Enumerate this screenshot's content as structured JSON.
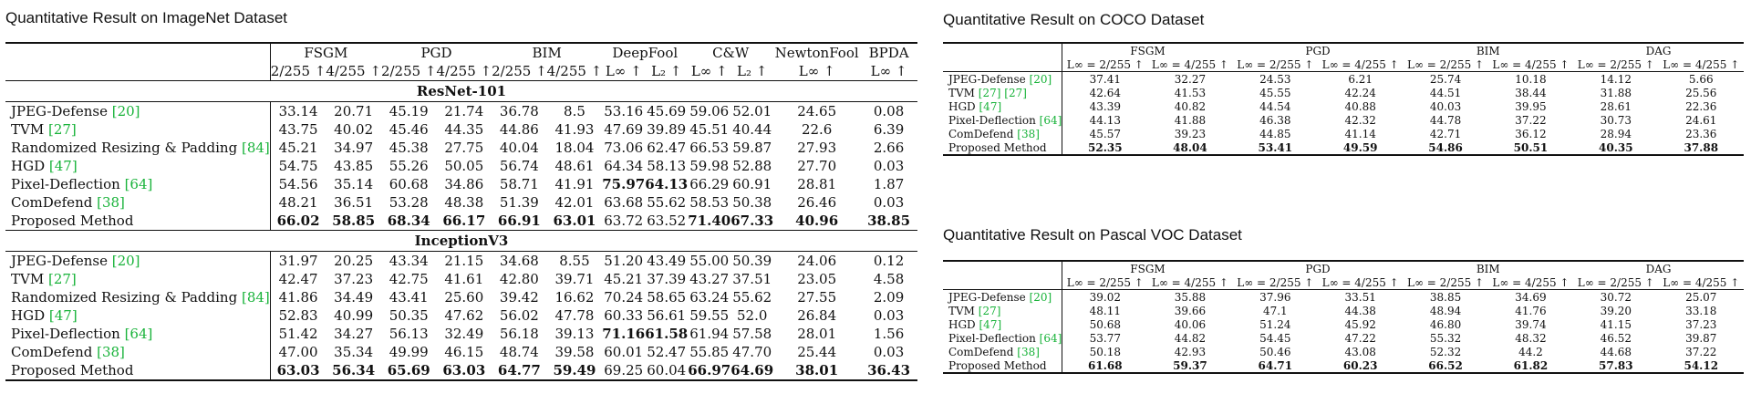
{
  "imagenet": {
    "caption": "Quantitative Result on ImageNet Dataset",
    "groups": [
      "FSGM",
      "PGD",
      "BIM",
      "DeepFool",
      "C&W",
      "NewtonFool",
      "BPDA"
    ],
    "subheaders": [
      "2/255 ↑",
      "4/255 ↑",
      "2/255 ↑",
      "4/255 ↑",
      "2/255 ↑",
      "4/255 ↑",
      "L∞ ↑",
      "L₂ ↑",
      "L∞ ↑",
      "L₂ ↑",
      "L∞ ↑",
      "L∞ ↑"
    ],
    "sections": [
      {
        "title": "ResNet-101",
        "rows": [
          {
            "method": "JPEG-Defense",
            "ref": "[20]",
            "values": [
              "33.14",
              "20.71",
              "45.19",
              "21.74",
              "36.78",
              "8.5",
              "53.16",
              "45.69",
              "59.06",
              "52.01",
              "24.65",
              "0.08"
            ],
            "bold": []
          },
          {
            "method": "TVM",
            "ref": "[27]",
            "values": [
              "43.75",
              "40.02",
              "45.46",
              "44.35",
              "44.86",
              "41.93",
              "47.69",
              "39.89",
              "45.51",
              "40.44",
              "22.6",
              "6.39"
            ],
            "bold": []
          },
          {
            "method": "Randomized Resizing & Padding",
            "ref": "[84]",
            "values": [
              "45.21",
              "34.97",
              "45.38",
              "27.75",
              "40.04",
              "18.04",
              "73.06",
              "62.47",
              "66.53",
              "59.87",
              "27.93",
              "2.66"
            ],
            "bold": []
          },
          {
            "method": "HGD",
            "ref": "[47]",
            "values": [
              "54.75",
              "43.85",
              "55.26",
              "50.05",
              "56.74",
              "48.61",
              "64.34",
              "58.13",
              "59.98",
              "52.88",
              "27.70",
              "0.03"
            ],
            "bold": []
          },
          {
            "method": "Pixel-Deflection",
            "ref": "[64]",
            "values": [
              "54.56",
              "35.14",
              "60.68",
              "34.86",
              "58.71",
              "41.91",
              "75.97",
              "64.13",
              "66.29",
              "60.91",
              "28.81",
              "1.87"
            ],
            "bold": [
              6,
              7
            ]
          },
          {
            "method": "ComDefend",
            "ref": "[38]",
            "values": [
              "48.21",
              "36.51",
              "53.28",
              "48.38",
              "51.39",
              "42.01",
              "63.68",
              "55.62",
              "58.53",
              "50.38",
              "26.46",
              "0.03"
            ],
            "bold": []
          },
          {
            "method": "Proposed Method",
            "ref": "",
            "values": [
              "66.02",
              "58.85",
              "68.34",
              "66.17",
              "66.91",
              "63.01",
              "63.72",
              "63.52",
              "71.40",
              "67.33",
              "40.96",
              "38.85"
            ],
            "bold": [
              0,
              1,
              2,
              3,
              4,
              5,
              8,
              9,
              10,
              11
            ]
          }
        ]
      },
      {
        "title": "InceptionV3",
        "rows": [
          {
            "method": "JPEG-Defense",
            "ref": "[20]",
            "values": [
              "31.97",
              "20.25",
              "43.34",
              "21.15",
              "34.68",
              "8.55",
              "51.20",
              "43.49",
              "55.00",
              "50.39",
              "24.06",
              "0.12"
            ],
            "bold": []
          },
          {
            "method": "TVM",
            "ref": "[27]",
            "values": [
              "42.47",
              "37.23",
              "42.75",
              "41.61",
              "42.80",
              "39.71",
              "45.21",
              "37.39",
              "43.27",
              "37.51",
              "23.05",
              "4.58"
            ],
            "bold": []
          },
          {
            "method": "Randomized Resizing & Padding",
            "ref": "[84]",
            "values": [
              "41.86",
              "34.49",
              "43.41",
              "25.60",
              "39.42",
              "16.62",
              "70.24",
              "58.65",
              "63.24",
              "55.62",
              "27.55",
              "2.09"
            ],
            "bold": []
          },
          {
            "method": "HGD",
            "ref": "[47]",
            "values": [
              "52.83",
              "40.99",
              "50.35",
              "47.62",
              "56.02",
              "47.78",
              "60.33",
              "56.61",
              "59.55",
              "52.0",
              "26.84",
              "0.03"
            ],
            "bold": []
          },
          {
            "method": "Pixel-Deflection",
            "ref": "[64]",
            "values": [
              "51.42",
              "34.27",
              "56.13",
              "32.49",
              "56.18",
              "39.13",
              "71.16",
              "61.58",
              "61.94",
              "57.58",
              "28.01",
              "1.56"
            ],
            "bold": [
              6,
              7
            ]
          },
          {
            "method": "ComDefend",
            "ref": "[38]",
            "values": [
              "47.00",
              "35.34",
              "49.99",
              "46.15",
              "48.74",
              "39.58",
              "60.01",
              "52.47",
              "55.85",
              "47.70",
              "25.44",
              "0.03"
            ],
            "bold": []
          },
          {
            "method": "Proposed Method",
            "ref": "",
            "values": [
              "63.03",
              "56.34",
              "65.69",
              "63.03",
              "64.77",
              "59.49",
              "69.25",
              "60.04",
              "66.97",
              "64.69",
              "38.01",
              "36.43"
            ],
            "bold": [
              0,
              1,
              2,
              3,
              4,
              5,
              8,
              9,
              10,
              11
            ]
          }
        ]
      }
    ]
  },
  "coco": {
    "caption": "Quantitative Result on COCO Dataset",
    "groups": [
      "FSGM",
      "PGD",
      "BIM",
      "DAG"
    ],
    "subheaders": [
      "L∞ = 2/255 ↑",
      "L∞ = 4/255 ↑",
      "L∞ = 2/255 ↑",
      "L∞ = 4/255 ↑",
      "L∞ = 2/255 ↑",
      "L∞ = 4/255 ↑",
      "L∞ = 2/255 ↑",
      "L∞ = 4/255 ↑"
    ],
    "rows": [
      {
        "method": "JPEG-Defense",
        "refs": [
          "[20]"
        ],
        "values": [
          "37.41",
          "32.27",
          "24.53",
          "6.21",
          "25.74",
          "10.18",
          "14.12",
          "5.66"
        ],
        "bold": []
      },
      {
        "method": "TVM",
        "refs": [
          "[27]",
          "[27]"
        ],
        "values": [
          "42.64",
          "41.53",
          "45.55",
          "42.24",
          "44.51",
          "38.44",
          "31.88",
          "25.56"
        ],
        "bold": []
      },
      {
        "method": "HGD",
        "refs": [
          "[47]"
        ],
        "values": [
          "43.39",
          "40.82",
          "44.54",
          "40.88",
          "40.03",
          "39.95",
          "28.61",
          "22.36"
        ],
        "bold": []
      },
      {
        "method": "Pixel-Deflection",
        "refs": [
          "[64]"
        ],
        "values": [
          "44.13",
          "41.88",
          "46.38",
          "42.32",
          "44.78",
          "37.22",
          "30.73",
          "24.61"
        ],
        "bold": []
      },
      {
        "method": "ComDefend",
        "refs": [
          "[38]"
        ],
        "values": [
          "45.57",
          "39.23",
          "44.85",
          "41.14",
          "42.71",
          "36.12",
          "28.94",
          "23.36"
        ],
        "bold": []
      },
      {
        "method": "Proposed Method",
        "refs": [],
        "values": [
          "52.35",
          "48.04",
          "53.41",
          "49.59",
          "54.86",
          "50.51",
          "40.35",
          "37.88"
        ],
        "bold": [
          0,
          1,
          2,
          3,
          4,
          5,
          6,
          7
        ]
      }
    ]
  },
  "voc": {
    "caption": "Quantitative Result on Pascal VOC Dataset",
    "groups": [
      "FSGM",
      "PGD",
      "BIM",
      "DAG"
    ],
    "subheaders": [
      "L∞ = 2/255 ↑",
      "L∞ = 4/255 ↑",
      "L∞ = 2/255 ↑",
      "L∞ = 4/255 ↑",
      "L∞ = 2/255 ↑",
      "L∞ = 4/255 ↑",
      "L∞ = 2/255 ↑",
      "L∞ = 4/255 ↑"
    ],
    "rows": [
      {
        "method": "JPEG-Defense",
        "refs": [
          "[20]"
        ],
        "values": [
          "39.02",
          "35.88",
          "37.96",
          "33.51",
          "38.85",
          "34.69",
          "30.72",
          "25.07"
        ],
        "bold": []
      },
      {
        "method": "TVM",
        "refs": [
          "[27]"
        ],
        "values": [
          "48.11",
          "39.66",
          "47.1",
          "44.38",
          "48.94",
          "41.76",
          "39.20",
          "33.18"
        ],
        "bold": []
      },
      {
        "method": "HGD",
        "refs": [
          "[47]"
        ],
        "values": [
          "50.68",
          "40.06",
          "51.24",
          "45.92",
          "46.80",
          "39.74",
          "41.15",
          "37.23"
        ],
        "bold": []
      },
      {
        "method": "Pixel-Deflection",
        "refs": [
          "[64]"
        ],
        "values": [
          "53.77",
          "44.82",
          "54.45",
          "47.22",
          "55.32",
          "48.32",
          "46.52",
          "39.87"
        ],
        "bold": []
      },
      {
        "method": "ComDefend",
        "refs": [
          "[38]"
        ],
        "values": [
          "50.18",
          "42.93",
          "50.46",
          "43.08",
          "52.32",
          "44.2",
          "44.68",
          "37.22"
        ],
        "bold": []
      },
      {
        "method": "Proposed Method",
        "refs": [],
        "values": [
          "61.68",
          "59.37",
          "64.71",
          "60.23",
          "66.52",
          "61.82",
          "57.83",
          "54.12"
        ],
        "bold": [
          0,
          1,
          2,
          3,
          4,
          5,
          6,
          7
        ]
      }
    ]
  }
}
